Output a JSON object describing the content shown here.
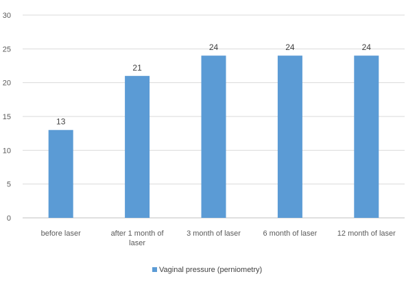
{
  "chart_data": {
    "type": "bar",
    "categories": [
      [
        "before laser"
      ],
      [
        "after 1 month of",
        "laser"
      ],
      [
        "3 month of laser"
      ],
      [
        "6 month of laser"
      ],
      [
        "12 month of laser"
      ]
    ],
    "series": [
      {
        "name": "Vaginal pressure (perniometry)",
        "values": [
          13,
          21,
          24,
          24,
          24
        ],
        "color": "#5b9bd5"
      }
    ],
    "data_labels": [
      "13",
      "21",
      "24",
      "24",
      "24"
    ],
    "yticks": [
      "0",
      "5",
      "10",
      "15",
      "20",
      "25",
      "30"
    ],
    "ylim": [
      0,
      30
    ],
    "grid": true,
    "legend_position": "bottom-center",
    "title": "",
    "xlabel": "",
    "ylabel": ""
  }
}
